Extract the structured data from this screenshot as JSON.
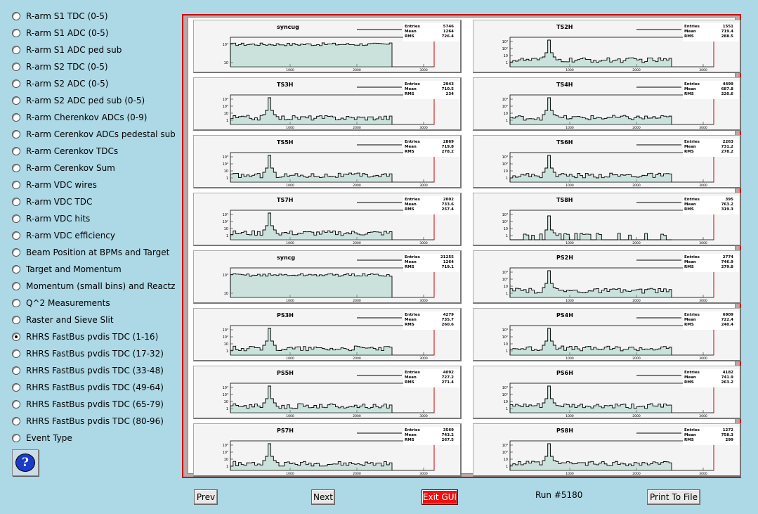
{
  "menu": {
    "items": [
      {
        "label": "R-arm S1 TDC (0-5)",
        "selected": false
      },
      {
        "label": "R-arm S1 ADC (0-5)",
        "selected": false
      },
      {
        "label": "R-arm S1 ADC ped sub",
        "selected": false
      },
      {
        "label": "R-arm S2 TDC (0-5)",
        "selected": false
      },
      {
        "label": "R-arm S2 ADC (0-5)",
        "selected": false
      },
      {
        "label": "R-arm S2 ADC ped sub (0-5)",
        "selected": false
      },
      {
        "label": "R-arm Cherenkov ADCs (0-9)",
        "selected": false
      },
      {
        "label": "R-arm Cerenkov ADCs pedestal sub",
        "selected": false
      },
      {
        "label": "R-arm Cerenkov TDCs",
        "selected": false
      },
      {
        "label": "R-arm Cerenkov Sum",
        "selected": false
      },
      {
        "label": "R-arm VDC wires",
        "selected": false
      },
      {
        "label": "R-arm VDC TDC",
        "selected": false
      },
      {
        "label": "R-arm VDC hits",
        "selected": false
      },
      {
        "label": "R-arm VDC efficiency",
        "selected": false
      },
      {
        "label": "Beam Position at BPMs and Target",
        "selected": false
      },
      {
        "label": "Target and Momentum",
        "selected": false
      },
      {
        "label": "Momentum (small bins) and Reactz",
        "selected": false
      },
      {
        "label": "Q^2 Measurements",
        "selected": false
      },
      {
        "label": "Raster and Sieve Slit",
        "selected": false
      },
      {
        "label": "RHRS FastBus pvdis TDC (1-16)",
        "selected": true
      },
      {
        "label": "RHRS FastBus pvdis TDC (17-32)",
        "selected": false
      },
      {
        "label": "RHRS FastBus pvdis TDC (33-48)",
        "selected": false
      },
      {
        "label": "RHRS FastBus pvdis TDC (49-64)",
        "selected": false
      },
      {
        "label": "RHRS FastBus pvdis TDC (65-79)",
        "selected": false
      },
      {
        "label": "RHRS FastBus pvdis TDC (80-96)",
        "selected": false
      },
      {
        "label": "Event Type",
        "selected": false
      }
    ]
  },
  "help_icon": "question-bubble-icon",
  "buttons": {
    "prev": "Prev",
    "next": "Next",
    "exit": "Exit GUI",
    "print": "Print To File"
  },
  "run_label": "Run #5180",
  "colors": {
    "background": "#add8e6",
    "canvas_border": "#cc0000",
    "exit_button": "#ee1111",
    "hist_fill": "#7fbfb0"
  },
  "chart_data": [
    {
      "type": "bar",
      "title": "syncug",
      "stats": {
        "Entries": "5746",
        "Mean": "1264",
        "RMS": "726.4"
      },
      "shape": "flat"
    },
    {
      "type": "bar",
      "title": "TS2H",
      "stats": {
        "Entries": "1551",
        "Mean": "719.4",
        "RMS": "288.5"
      },
      "shape": "peak"
    },
    {
      "type": "bar",
      "title": "TS3H",
      "stats": {
        "Entries": "2943",
        "Mean": "710.5",
        "RMS": "234"
      },
      "shape": "peak"
    },
    {
      "type": "bar",
      "title": "TS4H",
      "stats": {
        "Entries": "4499",
        "Mean": "687.8",
        "RMS": "220.6"
      },
      "shape": "peak"
    },
    {
      "type": "bar",
      "title": "TS5H",
      "stats": {
        "Entries": "2869",
        "Mean": "719.8",
        "RMS": "278.2"
      },
      "shape": "peak"
    },
    {
      "type": "bar",
      "title": "TS6H",
      "stats": {
        "Entries": "2263",
        "Mean": "731.2",
        "RMS": "278.2"
      },
      "shape": "peak"
    },
    {
      "type": "bar",
      "title": "TS7H",
      "stats": {
        "Entries": "2002",
        "Mean": "733.6",
        "RMS": "257.4"
      },
      "shape": "peak"
    },
    {
      "type": "bar",
      "title": "TS8H",
      "stats": {
        "Entries": "395",
        "Mean": "763.2",
        "RMS": "319.3"
      },
      "shape": "sparse"
    },
    {
      "type": "bar",
      "title": "syncg",
      "stats": {
        "Entries": "21255",
        "Mean": "1264",
        "RMS": "719.1"
      },
      "shape": "flat"
    },
    {
      "type": "bar",
      "title": "PS2H",
      "stats": {
        "Entries": "2774",
        "Mean": "746.9",
        "RMS": "279.8"
      },
      "shape": "peak"
    },
    {
      "type": "bar",
      "title": "PS3H",
      "stats": {
        "Entries": "4279",
        "Mean": "735.7",
        "RMS": "260.6"
      },
      "shape": "peak"
    },
    {
      "type": "bar",
      "title": "PS4H",
      "stats": {
        "Entries": "6909",
        "Mean": "722.4",
        "RMS": "240.4"
      },
      "shape": "peak"
    },
    {
      "type": "bar",
      "title": "PS5H",
      "stats": {
        "Entries": "4092",
        "Mean": "727.2",
        "RMS": "271.4"
      },
      "shape": "peak"
    },
    {
      "type": "bar",
      "title": "PS6H",
      "stats": {
        "Entries": "4182",
        "Mean": "741.9",
        "RMS": "263.2"
      },
      "shape": "peak"
    },
    {
      "type": "bar",
      "title": "PS7H",
      "stats": {
        "Entries": "3569",
        "Mean": "743.2",
        "RMS": "267.5"
      },
      "shape": "peak"
    },
    {
      "type": "bar",
      "title": "PS8H",
      "stats": {
        "Entries": "1272",
        "Mean": "758.3",
        "RMS": "299"
      },
      "shape": "peak"
    }
  ]
}
